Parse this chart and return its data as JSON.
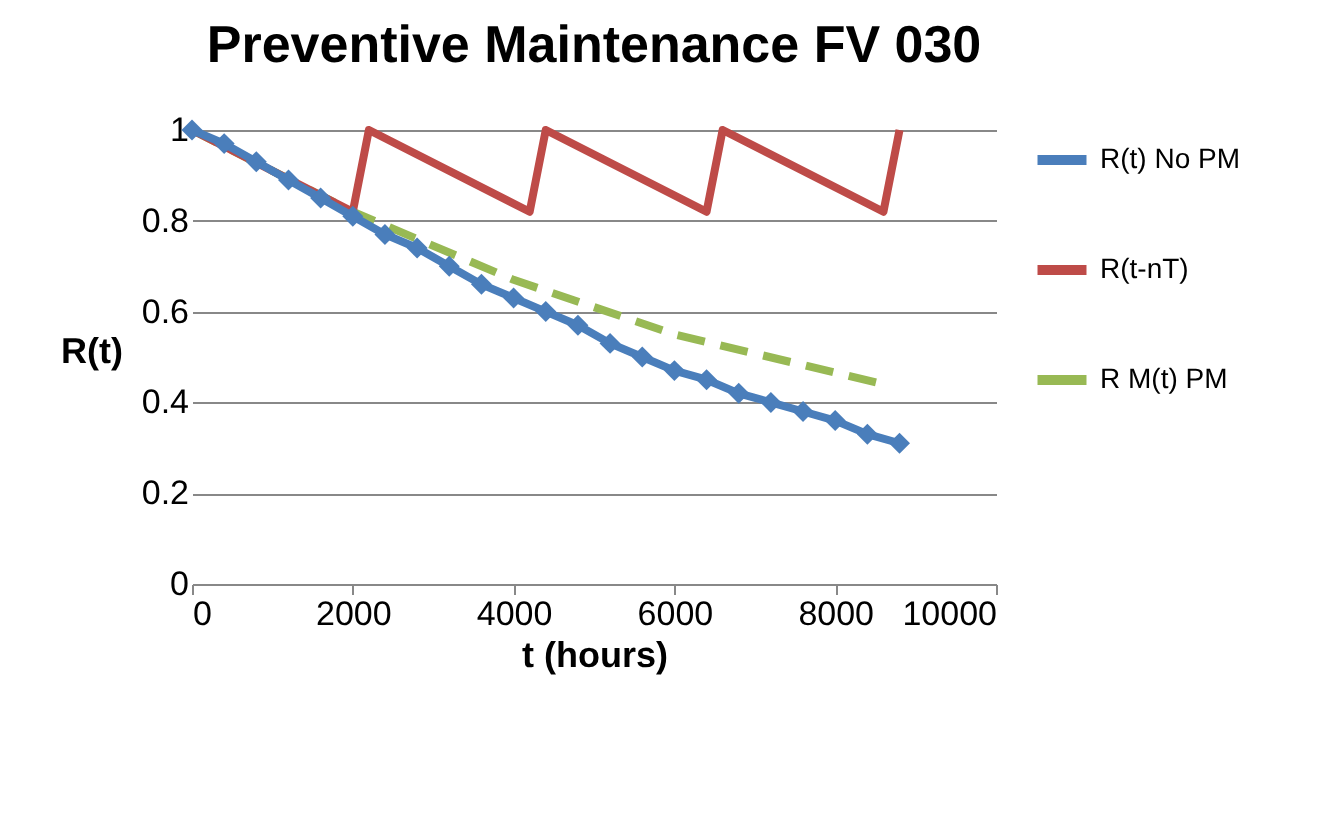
{
  "chart_data": {
    "type": "line",
    "title": "Preventive Maintenance FV 030",
    "xlabel": "t (hours)",
    "ylabel": "R(t)",
    "xlim": [
      0,
      10000
    ],
    "xticks": [
      0,
      2000,
      4000,
      6000,
      8000,
      10000
    ],
    "ylim": [
      0,
      1
    ],
    "yticks": [
      0,
      0.2,
      0.4,
      0.6,
      0.8,
      1
    ],
    "grid": "y",
    "legend": "right",
    "series": [
      {
        "name": "R(t) No PM",
        "color": "#4a7ebb",
        "marker": "diamond",
        "x": [
          0,
          400,
          800,
          1200,
          1600,
          2000,
          2400,
          2800,
          3200,
          3600,
          4000,
          4400,
          4800,
          5200,
          5600,
          6000,
          6400,
          6800,
          7200,
          7600,
          8000,
          8400,
          8800
        ],
        "values": [
          1,
          0.97,
          0.93,
          0.89,
          0.85,
          0.81,
          0.77,
          0.74,
          0.7,
          0.66,
          0.63,
          0.6,
          0.57,
          0.53,
          0.5,
          0.47,
          0.45,
          0.42,
          0.4,
          0.38,
          0.36,
          0.33,
          0.31
        ]
      },
      {
        "name": "R(t-nT)",
        "color": "#be4b48",
        "marker": "none",
        "x": [
          0,
          2000,
          2200,
          4200,
          4400,
          6400,
          6600,
          8600,
          8800
        ],
        "values": [
          1,
          0.82,
          1,
          0.82,
          1,
          0.82,
          1,
          0.82,
          1
        ]
      },
      {
        "name": "R M(t) PM",
        "color": "#98b954",
        "marker": "none",
        "line_style": "dashed",
        "x": [
          0,
          2000,
          4000,
          6000,
          8600
        ],
        "values": [
          1,
          0.82,
          0.67,
          0.55,
          0.44
        ]
      }
    ]
  }
}
